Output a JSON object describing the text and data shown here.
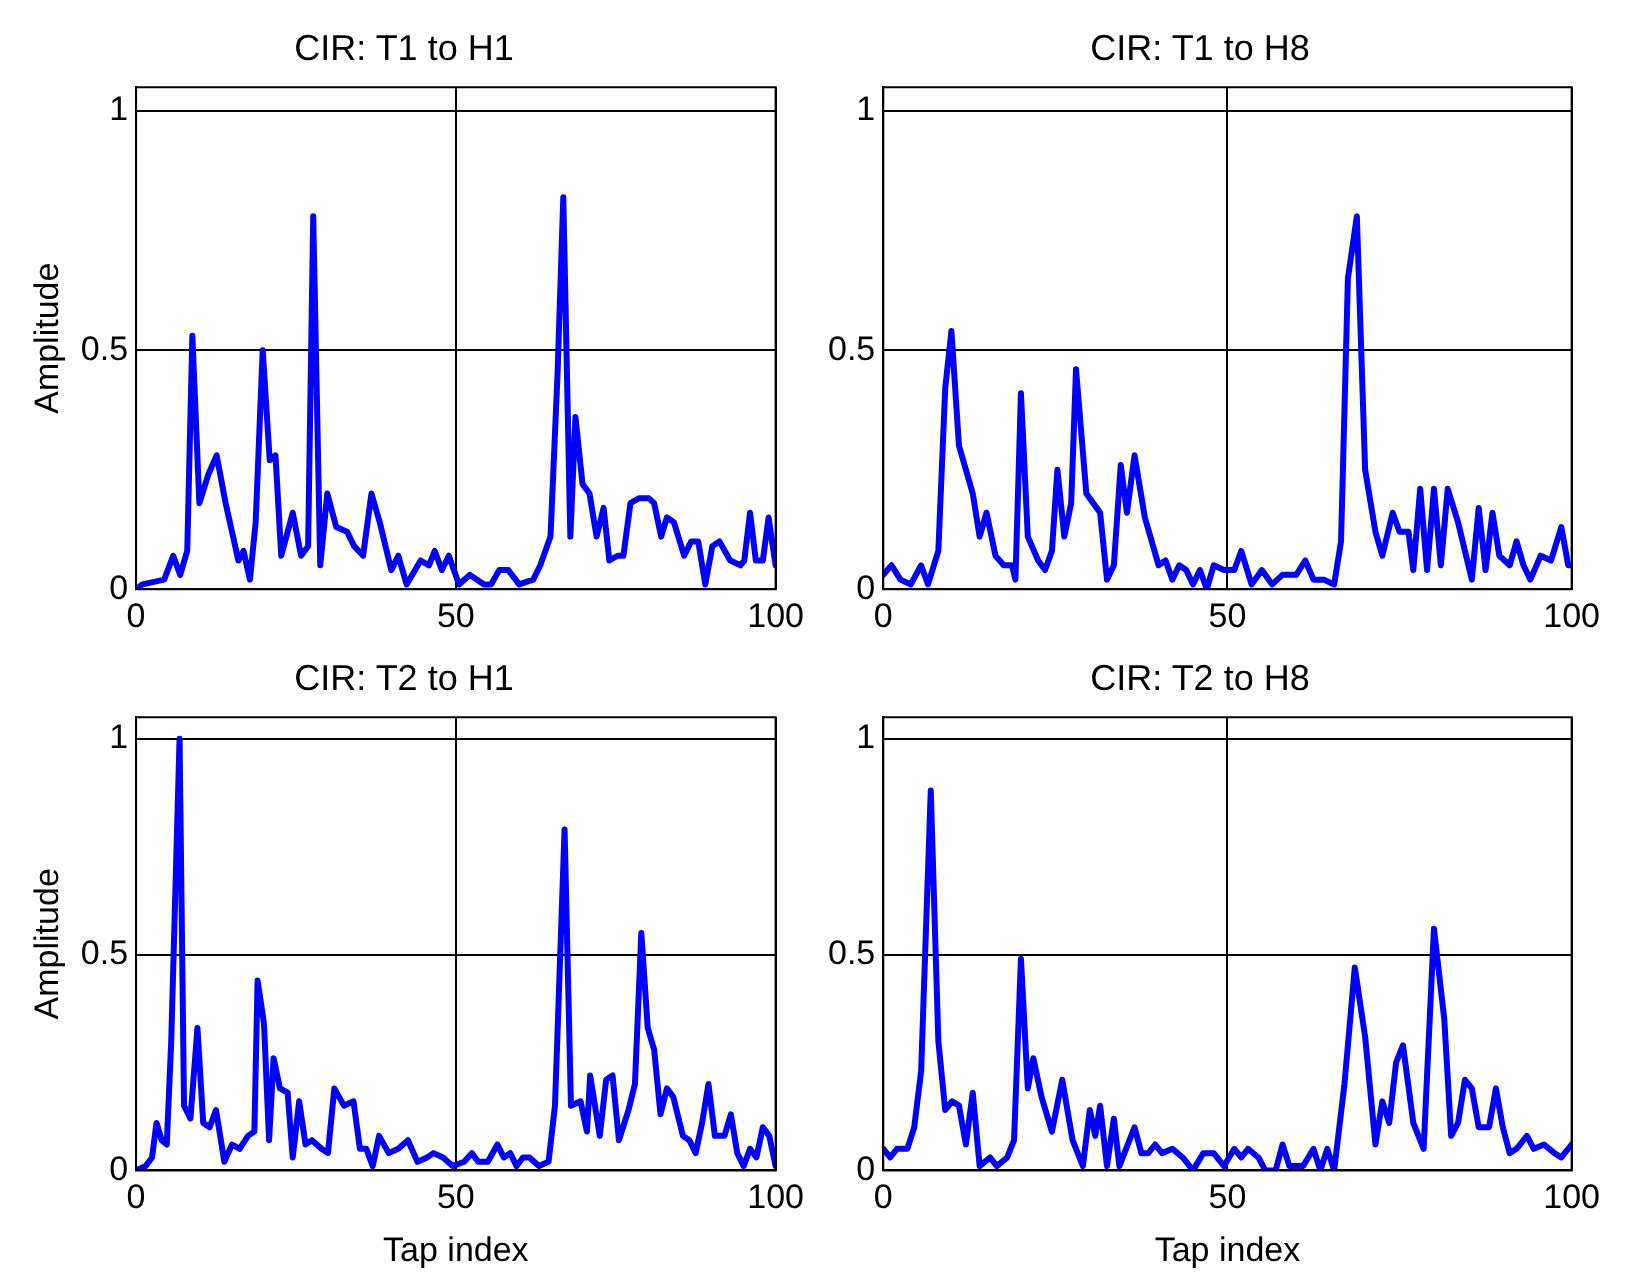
{
  "chart_data": [
    {
      "type": "line",
      "title": "CIR: T1 to H1",
      "ylabel": "Amplitude",
      "xlim": [
        0,
        100
      ],
      "ylim": [
        0,
        1.05
      ],
      "xticks": [
        0,
        50,
        100
      ],
      "yticks": [
        0,
        0.5,
        1
      ],
      "grid": true,
      "line_style": "solid",
      "marker": "none",
      "legend": false,
      "series": [
        {
          "color": "#0000ff",
          "x": [
            0,
            1,
            4.4,
            5.8,
            6.9,
            8,
            8.8,
            9.9,
            11.3,
            12.6,
            14,
            15,
            16,
            16.8,
            17.8,
            18.7,
            19.8,
            20.9,
            21.8,
            22.7,
            24.5,
            25.8,
            26.9,
            27.7,
            28.8,
            29.9,
            31.3,
            33,
            34.1,
            35.5,
            36.8,
            38.1,
            39.9,
            41,
            42.3,
            44.5,
            45.8,
            46.7,
            47.8,
            48.9,
            50.5,
            52.2,
            54.4,
            55.5,
            56.8,
            58.2,
            59.9,
            62.1,
            63.2,
            64.8,
            65.9,
            66.8,
            67.9,
            68.7,
            69.8,
            70.9,
            72,
            73.1,
            74,
            75.3,
            76.2,
            77.3,
            78.6,
            80.2,
            81,
            82.1,
            83,
            84.1,
            85.7,
            86.8,
            87.9,
            89,
            90.1,
            91.2,
            92.9,
            94.5,
            95.1,
            96,
            96.9,
            98,
            98.9,
            100
          ],
          "values": [
            0,
            0.01,
            0.02,
            0.07,
            0.03,
            0.08,
            0.53,
            0.18,
            0.24,
            0.28,
            0.18,
            0.12,
            0.06,
            0.08,
            0.02,
            0.14,
            0.5,
            0.27,
            0.28,
            0.07,
            0.16,
            0.07,
            0.09,
            0.78,
            0.05,
            0.2,
            0.13,
            0.12,
            0.09,
            0.07,
            0.2,
            0.14,
            0.04,
            0.07,
            0.01,
            0.06,
            0.05,
            0.08,
            0.04,
            0.07,
            0.01,
            0.03,
            0.01,
            0.01,
            0.04,
            0.04,
            0.01,
            0.02,
            0.05,
            0.11,
            0.45,
            0.82,
            0.11,
            0.36,
            0.22,
            0.2,
            0.11,
            0.17,
            0.06,
            0.07,
            0.07,
            0.18,
            0.19,
            0.19,
            0.18,
            0.11,
            0.15,
            0.14,
            0.07,
            0.1,
            0.1,
            0.01,
            0.09,
            0.1,
            0.06,
            0.05,
            0.06,
            0.16,
            0.06,
            0.06,
            0.15,
            0.05
          ]
        }
      ]
    },
    {
      "type": "line",
      "title": "CIR: T1 to H8",
      "xlim": [
        0,
        100
      ],
      "ylim": [
        0,
        1.05
      ],
      "xticks": [
        0,
        50,
        100
      ],
      "yticks": [
        0,
        0.5,
        1
      ],
      "grid": true,
      "line_style": "solid",
      "marker": "none",
      "legend": false,
      "series": [
        {
          "color": "#0000ff",
          "x": [
            0,
            1.2,
            2.5,
            4,
            5.5,
            6.5,
            8,
            9,
            9.9,
            11,
            13,
            14,
            15,
            16.3,
            17.5,
            18.7,
            19.2,
            20,
            21,
            22.5,
            23.5,
            24.5,
            25.3,
            26.3,
            27.3,
            28,
            29.5,
            31.5,
            32.5,
            33.5,
            34.5,
            35.4,
            36.5,
            38,
            39,
            40,
            41,
            42,
            43,
            44,
            45,
            46,
            47,
            48,
            49.5,
            51,
            52,
            53.5,
            55,
            56.5,
            58,
            60,
            61.3,
            62.5,
            64,
            65.5,
            66.5,
            67.5,
            68.8,
            70,
            71.5,
            72.5,
            74,
            75,
            76.3,
            77,
            78,
            79,
            80,
            81,
            82,
            83.5,
            84.5,
            85.5,
            86.5,
            87.5,
            88.5,
            89.5,
            91,
            92,
            93,
            94,
            95.5,
            97,
            98.5,
            99.5,
            100
          ],
          "values": [
            0.03,
            0.05,
            0.02,
            0.01,
            0.05,
            0.01,
            0.08,
            0.42,
            0.54,
            0.3,
            0.2,
            0.11,
            0.16,
            0.07,
            0.05,
            0.05,
            0.02,
            0.41,
            0.11,
            0.06,
            0.04,
            0.08,
            0.25,
            0.11,
            0.18,
            0.46,
            0.2,
            0.16,
            0.02,
            0.05,
            0.26,
            0.16,
            0.28,
            0.15,
            0.1,
            0.05,
            0.06,
            0.02,
            0.05,
            0.04,
            0.01,
            0.04,
            0,
            0.05,
            0.04,
            0.04,
            0.08,
            0.01,
            0.04,
            0.01,
            0.03,
            0.03,
            0.06,
            0.02,
            0.02,
            0.01,
            0.1,
            0.65,
            0.78,
            0.25,
            0.12,
            0.07,
            0.16,
            0.12,
            0.12,
            0.04,
            0.21,
            0.04,
            0.21,
            0.05,
            0.21,
            0.14,
            0.08,
            0.02,
            0.17,
            0.04,
            0.16,
            0.07,
            0.05,
            0.1,
            0.05,
            0.02,
            0.07,
            0.06,
            0.13,
            0.05,
            0.05
          ]
        }
      ]
    },
    {
      "type": "line",
      "title": "CIR: T2 to H1",
      "xlabel": "Tap index",
      "ylabel": "Amplitude",
      "xlim": [
        0,
        100
      ],
      "ylim": [
        0,
        1.05
      ],
      "xticks": [
        0,
        50,
        100
      ],
      "yticks": [
        0,
        0.5,
        1
      ],
      "grid": true,
      "line_style": "solid",
      "marker": "none",
      "legend": false,
      "series": [
        {
          "color": "#0000ff",
          "x": [
            0,
            1.5,
            2.5,
            3.2,
            4,
            4.8,
            5.5,
            6.8,
            7.5,
            8.5,
            9.6,
            10.5,
            11.5,
            12.5,
            13.8,
            15,
            16.2,
            17.5,
            18.5,
            19,
            20,
            20.8,
            21.5,
            22.5,
            23.7,
            24.5,
            25.5,
            26.5,
            27.5,
            29,
            30,
            31,
            32.5,
            34,
            35,
            36,
            37,
            38,
            39.5,
            41,
            42.5,
            44,
            45.5,
            46.5,
            48,
            49.5,
            51.3,
            52.5,
            53.5,
            55,
            56.5,
            57.5,
            58.5,
            59.5,
            60.5,
            61.5,
            63,
            64.5,
            65.5,
            67,
            68,
            69.5,
            70.5,
            71,
            72.5,
            73.5,
            74.5,
            75.5,
            77,
            78,
            79,
            80,
            81,
            82,
            83,
            84,
            85.5,
            86.5,
            87.5,
            88.5,
            89.5,
            90.5,
            92,
            93,
            94,
            95,
            96,
            97,
            98,
            99,
            100
          ],
          "values": [
            0,
            0.01,
            0.03,
            0.11,
            0.07,
            0.06,
            0.3,
            1,
            0.15,
            0.12,
            0.33,
            0.11,
            0.1,
            0.14,
            0.02,
            0.06,
            0.05,
            0.08,
            0.09,
            0.44,
            0.34,
            0.07,
            0.26,
            0.19,
            0.18,
            0.03,
            0.16,
            0.06,
            0.07,
            0.05,
            0.04,
            0.19,
            0.15,
            0.16,
            0.05,
            0.05,
            0.01,
            0.08,
            0.04,
            0.05,
            0.07,
            0.02,
            0.03,
            0.04,
            0.03,
            0.01,
            0.02,
            0.04,
            0.02,
            0.02,
            0.06,
            0.03,
            0.04,
            0.01,
            0.03,
            0.03,
            0.01,
            0.02,
            0.15,
            0.79,
            0.15,
            0.16,
            0.09,
            0.22,
            0.08,
            0.21,
            0.22,
            0.07,
            0.14,
            0.2,
            0.55,
            0.33,
            0.28,
            0.13,
            0.19,
            0.17,
            0.08,
            0.07,
            0.04,
            0.11,
            0.2,
            0.08,
            0.08,
            0.13,
            0.04,
            0.01,
            0.05,
            0.03,
            0.1,
            0.08,
            0.01
          ]
        }
      ]
    },
    {
      "type": "line",
      "title": "CIR: T2 to H8",
      "xlabel": "Tap index",
      "xlim": [
        0,
        100
      ],
      "ylim": [
        0,
        1.05
      ],
      "xticks": [
        0,
        50,
        100
      ],
      "yticks": [
        0,
        0.5,
        1
      ],
      "grid": true,
      "line_style": "solid",
      "marker": "none",
      "legend": false,
      "series": [
        {
          "color": "#0000ff",
          "x": [
            0,
            1,
            2,
            3.5,
            4.5,
            5.5,
            6.9,
            8,
            9,
            10,
            11,
            12,
            13,
            14,
            15.5,
            16.5,
            18,
            19,
            20,
            21,
            21.8,
            23,
            24.5,
            26,
            27.5,
            29,
            30,
            30.8,
            31.5,
            32.5,
            33.5,
            34.3,
            36.5,
            37.5,
            38.5,
            39.5,
            40.5,
            42,
            43.5,
            45,
            46.5,
            48,
            49.5,
            51,
            52,
            53,
            54.5,
            55.5,
            57,
            58,
            59,
            61,
            62.5,
            63.5,
            64.5,
            65.5,
            67,
            68.5,
            70,
            71.5,
            72.5,
            73.5,
            74.5,
            75.5,
            77,
            78.5,
            80,
            81.5,
            82.5,
            83.5,
            84.5,
            85.5,
            86.5,
            88,
            89,
            90,
            91,
            92,
            93.5,
            94.5,
            96,
            97.5,
            98.5,
            100
          ],
          "values": [
            0.05,
            0.03,
            0.05,
            0.05,
            0.1,
            0.23,
            0.88,
            0.3,
            0.14,
            0.16,
            0.15,
            0.06,
            0.18,
            0.01,
            0.03,
            0.01,
            0.03,
            0.07,
            0.49,
            0.19,
            0.26,
            0.17,
            0.09,
            0.21,
            0.07,
            0.01,
            0.14,
            0.08,
            0.15,
            0.01,
            0.12,
            0.01,
            0.1,
            0.04,
            0.04,
            0.06,
            0.04,
            0.05,
            0.03,
            0,
            0.04,
            0.04,
            0.01,
            0.05,
            0.03,
            0.05,
            0.03,
            0,
            0,
            0.06,
            0.01,
            0.01,
            0.05,
            0,
            0.05,
            0,
            0.2,
            0.47,
            0.31,
            0.06,
            0.16,
            0.11,
            0.25,
            0.29,
            0.11,
            0.05,
            0.56,
            0.35,
            0.08,
            0.11,
            0.21,
            0.19,
            0.1,
            0.1,
            0.19,
            0.1,
            0.04,
            0.05,
            0.08,
            0.05,
            0.06,
            0.04,
            0.03,
            0.06
          ]
        }
      ]
    }
  ]
}
